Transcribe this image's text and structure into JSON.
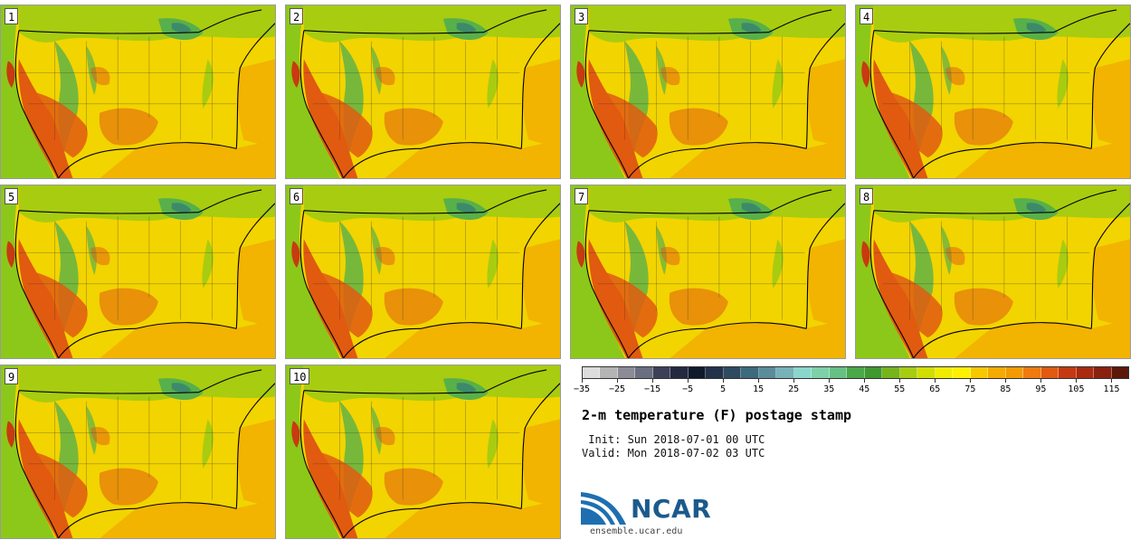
{
  "figure": {
    "title": "2-m temperature (F) postage stamp",
    "init_text": " Init: Sun 2018-07-01 00 UTC",
    "valid_text": "Valid: Mon 2018-07-02 03 UTC",
    "logo_name": "NCAR",
    "logo_url_text": "ensemble.ucar.edu"
  },
  "members": [
    {
      "label": "1"
    },
    {
      "label": "2"
    },
    {
      "label": "3"
    },
    {
      "label": "4"
    },
    {
      "label": "5"
    },
    {
      "label": "6"
    },
    {
      "label": "7"
    },
    {
      "label": "8"
    },
    {
      "label": "9"
    },
    {
      "label": "10"
    }
  ],
  "colorbar": {
    "unit": "F",
    "colors": [
      "#dcdcdc",
      "#b4b4b4",
      "#8c8c96",
      "#6a6e80",
      "#3c4058",
      "#232a40",
      "#0f1a2c",
      "#22324a",
      "#2e4a60",
      "#3d6a7c",
      "#5a8c9a",
      "#76b2b8",
      "#8ad6cc",
      "#7ed0a8",
      "#66c084",
      "#4aa848",
      "#409830",
      "#76b41c",
      "#a8cc10",
      "#d2de00",
      "#f0ec00",
      "#fff000",
      "#f6c800",
      "#f4aa00",
      "#f29a00",
      "#ee7a10",
      "#e05a10",
      "#c43a10",
      "#a82a10",
      "#8a2010",
      "#5c1808"
    ],
    "tick_labels": [
      "−35",
      "−25",
      "−15",
      "−5",
      "5",
      "15",
      "25",
      "35",
      "45",
      "55",
      "65",
      "75",
      "85",
      "95",
      "105",
      "115"
    ]
  },
  "colors": {
    "bg_warm": "#f2d400",
    "ocean_west": "#8cc81a",
    "ocean_south": "#f2b400",
    "hot": "#e05a10",
    "very_hot": "#c83a10",
    "cool_green": "#58b04a",
    "mid_green": "#a8cc10",
    "lakes": "#3d8a6a"
  }
}
